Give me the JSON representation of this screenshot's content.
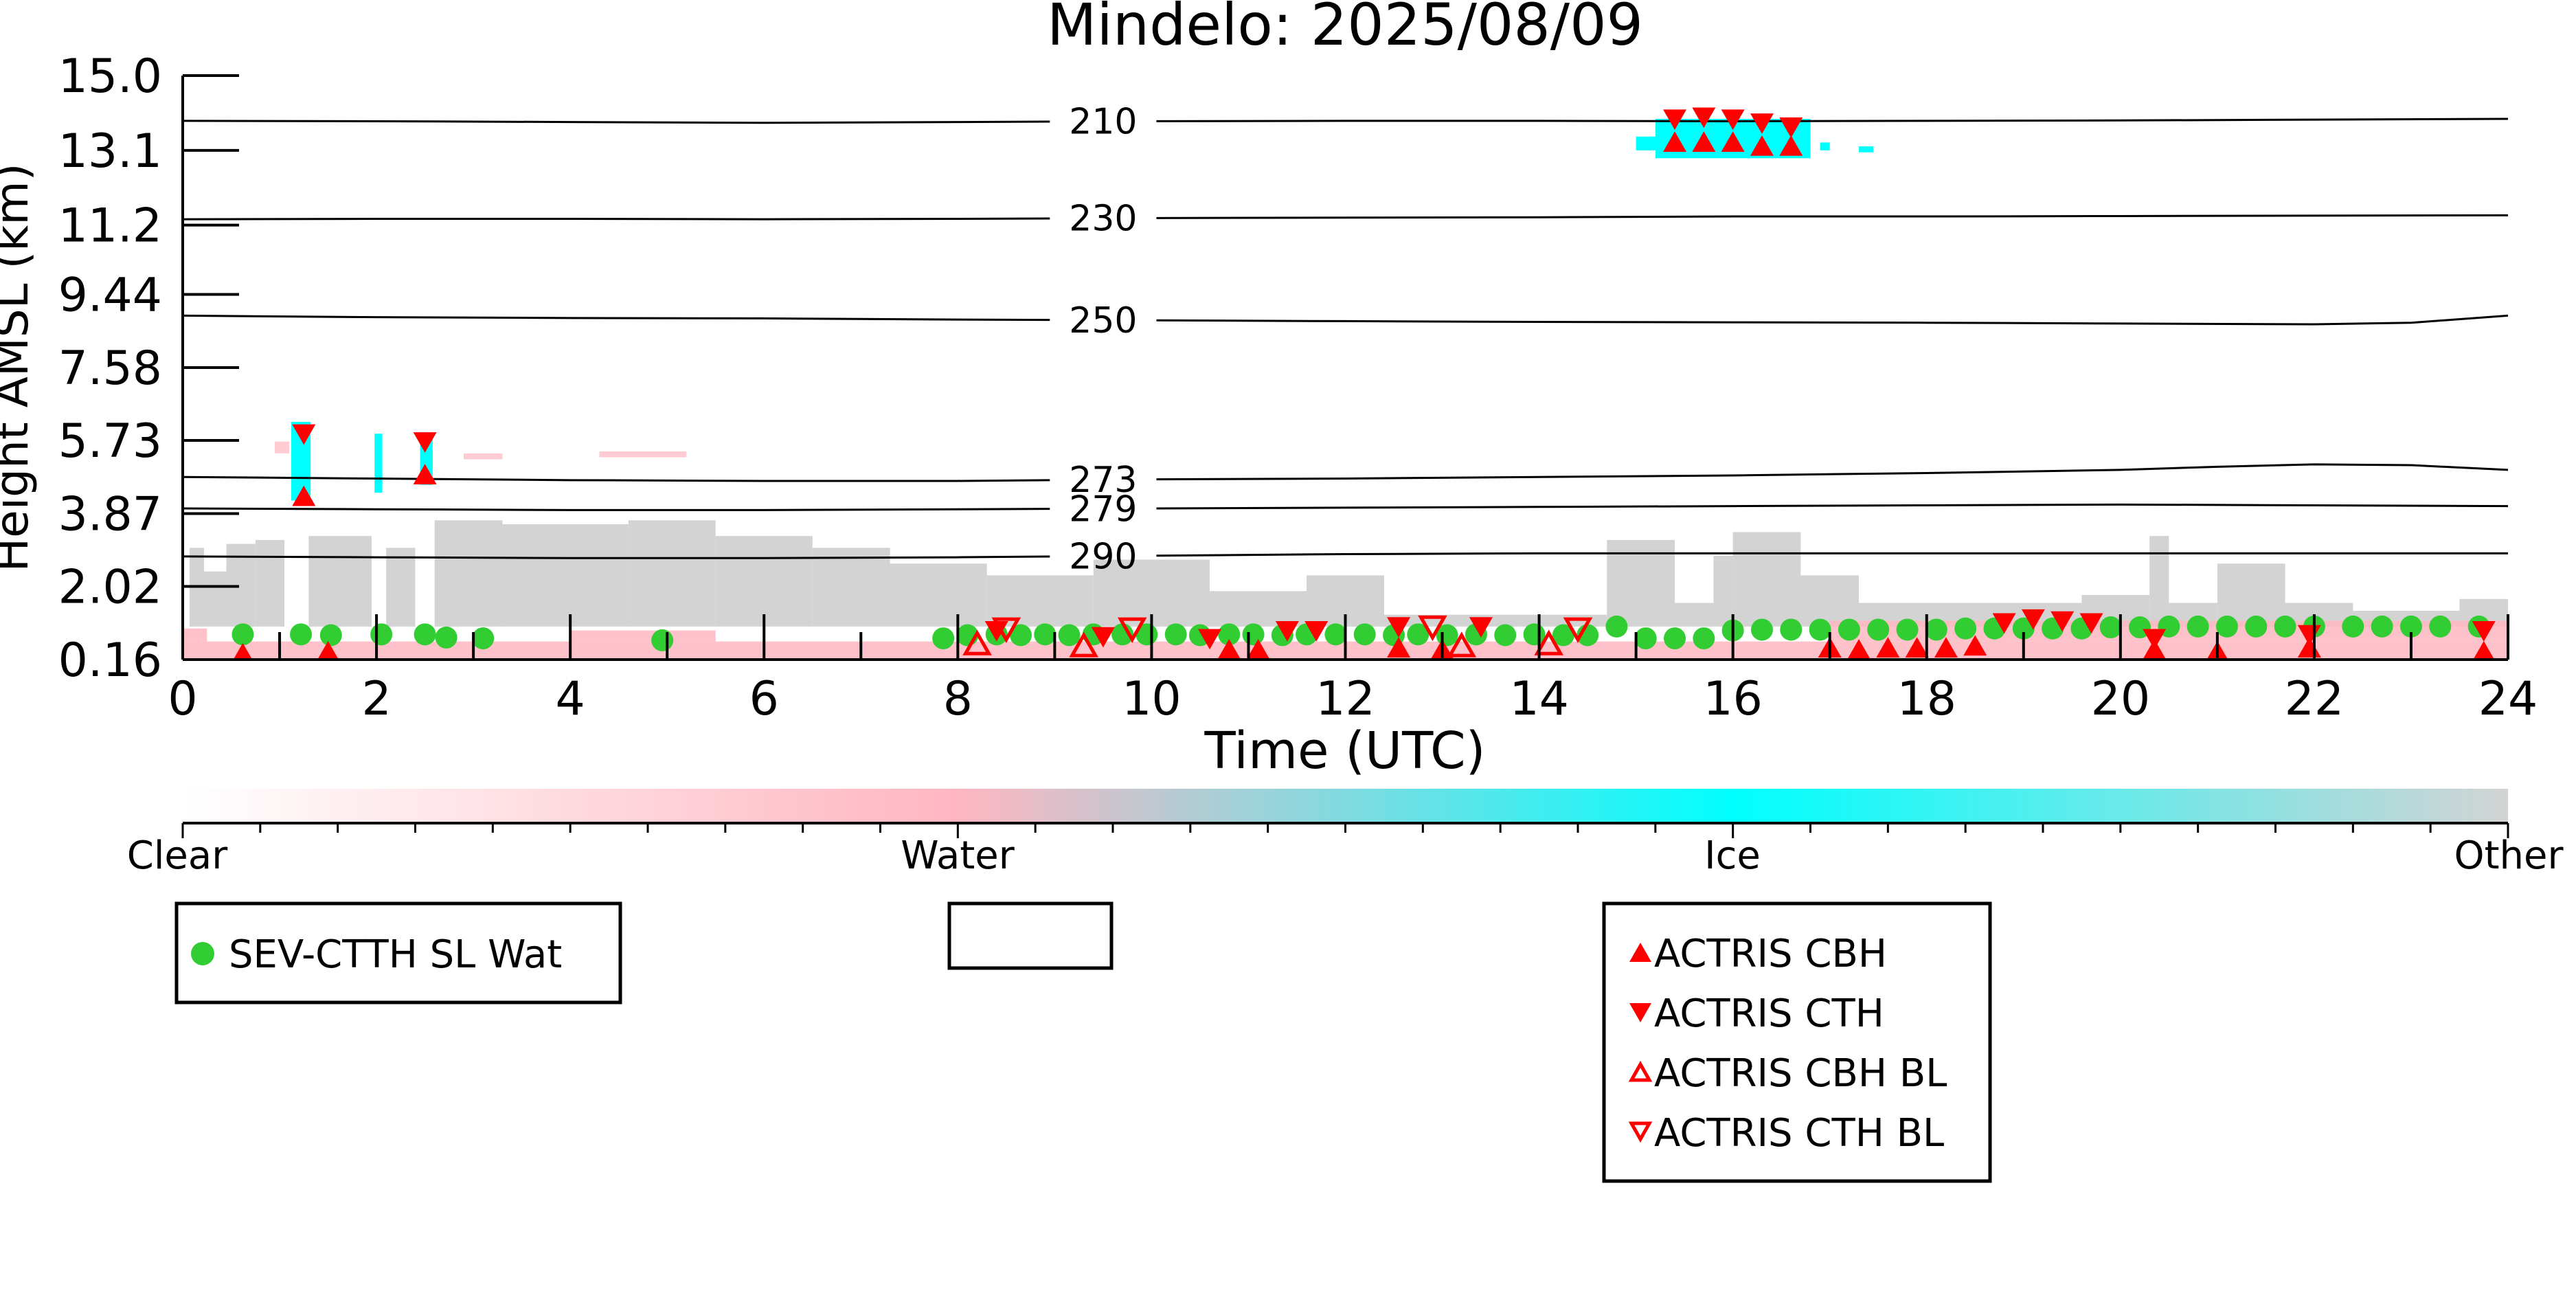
{
  "chart_data": {
    "type": "scatter",
    "title": "Mindelo: 2025/08/09",
    "xlabel": "Time (UTC)",
    "ylabel": "Height AMSL (km)",
    "xlim": [
      0,
      24
    ],
    "ylim": [
      0.16,
      15.0
    ],
    "x_ticks": [
      "0",
      "2",
      "4",
      "6",
      "8",
      "10",
      "12",
      "14",
      "16",
      "18",
      "20",
      "22",
      "24"
    ],
    "y_ticks": [
      "0.16",
      "2.02",
      "3.87",
      "5.73",
      "7.58",
      "9.44",
      "11.2",
      "13.1",
      "15.0"
    ],
    "y_tick_values": [
      0.16,
      2.02,
      3.87,
      5.73,
      7.58,
      9.44,
      11.2,
      13.1,
      15.0
    ],
    "grid": false,
    "colors": {
      "clear": "#ffffff",
      "water": "#ffb6c1",
      "ice": "#00ffff",
      "other": "#d3d3d3",
      "sev_ctth": "#32cd32",
      "actris": "#ff0000",
      "contour": "#000000"
    },
    "colorbar": {
      "labels": [
        "Clear",
        "Water",
        "Ice",
        "Other"
      ]
    },
    "contours": [
      {
        "label": "210",
        "x": [
          0,
          2,
          4,
          6,
          8,
          10,
          12,
          14,
          16,
          18,
          20,
          22,
          24
        ],
        "y": [
          13.85,
          13.84,
          13.82,
          13.8,
          13.82,
          13.84,
          13.85,
          13.85,
          13.84,
          13.85,
          13.86,
          13.88,
          13.9
        ]
      },
      {
        "label": "230",
        "x": [
          0,
          2,
          4,
          6,
          8,
          10,
          12,
          14,
          16,
          18,
          20,
          22,
          24
        ],
        "y": [
          11.35,
          11.36,
          11.36,
          11.35,
          11.36,
          11.38,
          11.39,
          11.4,
          11.42,
          11.42,
          11.43,
          11.44,
          11.45
        ]
      },
      {
        "label": "250",
        "x": [
          0,
          2,
          4,
          6,
          8,
          10,
          12,
          14,
          16,
          18,
          20,
          22,
          23,
          24
        ],
        "y": [
          8.9,
          8.86,
          8.84,
          8.83,
          8.8,
          8.78,
          8.76,
          8.74,
          8.73,
          8.72,
          8.7,
          8.68,
          8.72,
          8.9
        ]
      },
      {
        "label": "273",
        "x": [
          0,
          2,
          4,
          6,
          8,
          10,
          12,
          14,
          16,
          18,
          20,
          21,
          22,
          23,
          24
        ],
        "y": [
          4.8,
          4.76,
          4.72,
          4.7,
          4.7,
          4.74,
          4.76,
          4.8,
          4.84,
          4.9,
          4.98,
          5.06,
          5.12,
          5.1,
          4.98
        ]
      },
      {
        "label": "279",
        "x": [
          0,
          2,
          4,
          6,
          8,
          10,
          12,
          14,
          16,
          18,
          20,
          22,
          24
        ],
        "y": [
          4.0,
          3.98,
          3.96,
          3.96,
          3.98,
          4.0,
          4.02,
          4.04,
          4.06,
          4.08,
          4.1,
          4.08,
          4.06
        ]
      },
      {
        "label": "290",
        "x": [
          0,
          2,
          4,
          6,
          8,
          10,
          12,
          14,
          16,
          18,
          20,
          22,
          24
        ],
        "y": [
          2.78,
          2.76,
          2.74,
          2.74,
          2.76,
          2.8,
          2.84,
          2.86,
          2.86,
          2.86,
          2.86,
          2.86,
          2.86
        ]
      }
    ],
    "series": [
      {
        "name": "SEV-CTTH SL Wat",
        "marker": "circle",
        "points": [
          [
            0.62,
            0.8
          ],
          [
            1.22,
            0.8
          ],
          [
            1.53,
            0.78
          ],
          [
            2.05,
            0.8
          ],
          [
            2.5,
            0.8
          ],
          [
            2.72,
            0.72
          ],
          [
            3.1,
            0.7
          ],
          [
            4.95,
            0.65
          ],
          [
            7.85,
            0.7
          ],
          [
            8.1,
            0.78
          ],
          [
            8.4,
            0.8
          ],
          [
            8.65,
            0.78
          ],
          [
            8.9,
            0.8
          ],
          [
            9.15,
            0.78
          ],
          [
            9.4,
            0.8
          ],
          [
            9.7,
            0.8
          ],
          [
            9.95,
            0.8
          ],
          [
            10.25,
            0.8
          ],
          [
            10.5,
            0.78
          ],
          [
            10.8,
            0.8
          ],
          [
            11.05,
            0.8
          ],
          [
            11.35,
            0.78
          ],
          [
            11.6,
            0.8
          ],
          [
            11.9,
            0.8
          ],
          [
            12.2,
            0.8
          ],
          [
            12.5,
            0.78
          ],
          [
            12.75,
            0.8
          ],
          [
            13.05,
            0.78
          ],
          [
            13.35,
            0.8
          ],
          [
            13.65,
            0.78
          ],
          [
            13.95,
            0.8
          ],
          [
            14.25,
            0.78
          ],
          [
            14.5,
            0.78
          ],
          [
            14.8,
            1.0
          ],
          [
            15.1,
            0.7
          ],
          [
            15.4,
            0.7
          ],
          [
            15.7,
            0.7
          ],
          [
            16.0,
            0.9
          ],
          [
            16.3,
            0.92
          ],
          [
            16.6,
            0.92
          ],
          [
            16.9,
            0.92
          ],
          [
            17.2,
            0.92
          ],
          [
            17.5,
            0.92
          ],
          [
            17.8,
            0.92
          ],
          [
            18.1,
            0.92
          ],
          [
            18.4,
            0.95
          ],
          [
            18.7,
            0.95
          ],
          [
            19.0,
            0.95
          ],
          [
            19.3,
            0.95
          ],
          [
            19.6,
            0.95
          ],
          [
            19.9,
            0.98
          ],
          [
            20.2,
            0.98
          ],
          [
            20.5,
            1.0
          ],
          [
            20.8,
            1.0
          ],
          [
            21.1,
            1.0
          ],
          [
            21.4,
            1.0
          ],
          [
            21.7,
            1.0
          ],
          [
            22.0,
            1.0
          ],
          [
            22.4,
            1.0
          ],
          [
            22.7,
            1.0
          ],
          [
            23.0,
            1.0
          ],
          [
            23.3,
            1.0
          ],
          [
            23.7,
            1.0
          ]
        ]
      },
      {
        "name": "ACTRIS CBH",
        "marker": "triangle-up",
        "filled": true,
        "points": [
          [
            1.25,
            4.3
          ],
          [
            2.5,
            4.85
          ],
          [
            15.4,
            13.3
          ],
          [
            15.7,
            13.3
          ],
          [
            16.0,
            13.3
          ],
          [
            16.3,
            13.2
          ],
          [
            16.6,
            13.2
          ],
          [
            0.62,
            0.3
          ],
          [
            1.5,
            0.35
          ],
          [
            10.8,
            0.4
          ],
          [
            11.1,
            0.4
          ],
          [
            12.55,
            0.45
          ],
          [
            13.0,
            0.4
          ],
          [
            17.0,
            0.45
          ],
          [
            17.3,
            0.4
          ],
          [
            17.6,
            0.45
          ],
          [
            17.9,
            0.45
          ],
          [
            18.2,
            0.45
          ],
          [
            18.5,
            0.5
          ],
          [
            20.35,
            0.4
          ],
          [
            21.0,
            0.35
          ],
          [
            21.95,
            0.45
          ],
          [
            23.75,
            0.35
          ]
        ]
      },
      {
        "name": "ACTRIS CTH",
        "marker": "triangle-down",
        "filled": true,
        "points": [
          [
            1.25,
            5.9
          ],
          [
            2.5,
            5.7
          ],
          [
            15.4,
            13.9
          ],
          [
            15.7,
            13.95
          ],
          [
            16.0,
            13.9
          ],
          [
            16.3,
            13.8
          ],
          [
            16.6,
            13.7
          ],
          [
            8.4,
            0.9
          ],
          [
            9.5,
            0.75
          ],
          [
            10.6,
            0.7
          ],
          [
            11.4,
            0.9
          ],
          [
            11.7,
            0.9
          ],
          [
            12.55,
            1.0
          ],
          [
            13.4,
            1.0
          ],
          [
            18.8,
            1.1
          ],
          [
            19.1,
            1.2
          ],
          [
            19.4,
            1.15
          ],
          [
            19.7,
            1.1
          ],
          [
            20.35,
            0.7
          ],
          [
            21.95,
            0.8
          ],
          [
            23.75,
            0.9
          ]
        ]
      },
      {
        "name": "ACTRIS CBH BL",
        "marker": "triangle-up",
        "filled": false,
        "points": [
          [
            8.2,
            0.55
          ],
          [
            9.3,
            0.5
          ],
          [
            13.2,
            0.5
          ],
          [
            14.1,
            0.55
          ]
        ]
      },
      {
        "name": "ACTRIS CTH BL",
        "marker": "triangle-down",
        "filled": false,
        "points": [
          [
            8.5,
            0.95
          ],
          [
            9.8,
            0.95
          ],
          [
            12.9,
            1.0
          ],
          [
            14.4,
            0.95
          ]
        ]
      }
    ],
    "legend": {
      "placement": "below-left",
      "groups": [
        {
          "name": "left",
          "entries": [
            "SEV-CTTH SL Wat"
          ]
        },
        {
          "name": "middle",
          "entries": []
        },
        {
          "name": "right",
          "entries": [
            "ACTRIS CBH",
            "ACTRIS CTH",
            "ACTRIS CBH BL",
            "ACTRIS CTH BL"
          ]
        }
      ]
    },
    "mask_regions": {
      "water": [
        [
          0,
          24,
          0.16,
          0.62
        ],
        [
          0.0,
          0.25,
          0.62,
          0.95
        ],
        [
          4.0,
          5.5,
          0.62,
          0.9
        ],
        [
          17.0,
          24.0,
          0.62,
          1.15
        ]
      ],
      "ice": [
        [
          1.12,
          1.32,
          4.2,
          6.2
        ],
        [
          1.98,
          2.06,
          4.4,
          5.9
        ],
        [
          2.45,
          2.58,
          4.6,
          5.9
        ],
        [
          15.2,
          16.8,
          12.9,
          13.9
        ],
        [
          15.0,
          15.25,
          13.1,
          13.45
        ],
        [
          16.9,
          17.0,
          13.1,
          13.3
        ],
        [
          17.3,
          17.45,
          13.05,
          13.2
        ]
      ],
      "water_aloft": [
        [
          0.95,
          1.1,
          5.4,
          5.7
        ],
        [
          4.3,
          5.2,
          5.3,
          5.45
        ],
        [
          2.9,
          3.3,
          5.25,
          5.4
        ]
      ],
      "other": [
        [
          0.07,
          0.22,
          1.0,
          3.0
        ],
        [
          0.22,
          0.45,
          1.0,
          2.4
        ],
        [
          0.45,
          0.75,
          1.0,
          3.1
        ],
        [
          0.75,
          1.05,
          1.0,
          3.2
        ],
        [
          1.3,
          1.95,
          1.0,
          3.3
        ],
        [
          2.1,
          2.4,
          1.0,
          3.0
        ],
        [
          2.6,
          3.3,
          1.0,
          3.7
        ],
        [
          3.3,
          4.6,
          1.0,
          3.6
        ],
        [
          4.6,
          5.5,
          1.0,
          3.7
        ],
        [
          5.5,
          6.5,
          1.0,
          3.3
        ],
        [
          6.5,
          7.3,
          1.0,
          3.0
        ],
        [
          7.3,
          8.3,
          1.0,
          2.6
        ],
        [
          8.3,
          9.4,
          1.0,
          2.3
        ],
        [
          9.4,
          10.6,
          1.0,
          2.7
        ],
        [
          10.6,
          11.6,
          1.0,
          1.9
        ],
        [
          11.6,
          12.4,
          1.0,
          2.3
        ],
        [
          12.4,
          14.7,
          1.0,
          1.3
        ],
        [
          14.7,
          15.4,
          1.0,
          3.2
        ],
        [
          15.4,
          15.8,
          1.0,
          1.6
        ],
        [
          15.8,
          16.0,
          1.0,
          2.8
        ],
        [
          16.0,
          16.7,
          1.0,
          3.4
        ],
        [
          16.7,
          17.3,
          1.0,
          2.3
        ],
        [
          17.3,
          19.6,
          1.0,
          1.6
        ],
        [
          19.6,
          20.3,
          1.0,
          1.8
        ],
        [
          20.3,
          20.5,
          1.0,
          3.3
        ],
        [
          20.5,
          21.0,
          1.0,
          1.6
        ],
        [
          21.0,
          21.7,
          1.0,
          2.6
        ],
        [
          21.7,
          22.4,
          1.0,
          1.6
        ],
        [
          22.4,
          23.5,
          1.0,
          1.4
        ],
        [
          23.5,
          24.0,
          1.0,
          1.7
        ]
      ]
    }
  }
}
